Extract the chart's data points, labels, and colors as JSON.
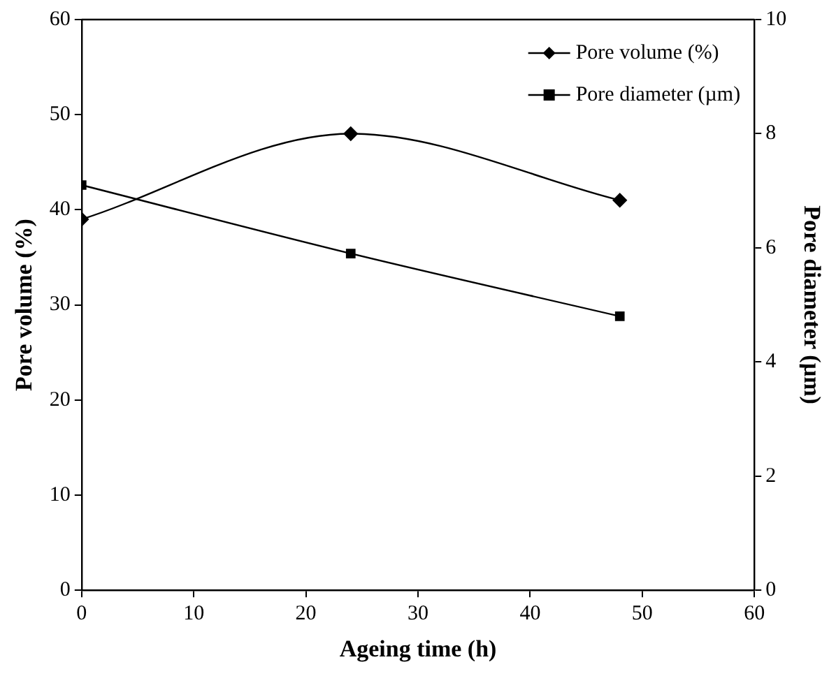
{
  "chart_data": {
    "type": "line",
    "xlabel": "Ageing time (h)",
    "ylabel": "Pore volume (%)",
    "y2label": "Pore diameter (µm)",
    "x": [
      0,
      24,
      48
    ],
    "series": [
      {
        "name": "Pore volume (%)",
        "color": "#000000",
        "values": [
          39,
          48,
          41
        ],
        "marker": "diamond"
      },
      {
        "name": "Pore diameter (µm)",
        "color": "#000000",
        "values": [
          7.1,
          5.9,
          4.8
        ],
        "marker": "square",
        "axis": "y2"
      }
    ],
    "xlim": [
      0,
      60
    ],
    "xticks": [
      0,
      10,
      20,
      30,
      40,
      50,
      60
    ],
    "ylim": [
      0,
      60
    ],
    "yticks": [
      0,
      10,
      20,
      30,
      40,
      50,
      60
    ],
    "y2lim": [
      0,
      10
    ],
    "y2ticks": [
      0,
      2,
      4,
      6,
      8,
      10
    ],
    "grid": false,
    "legend": "top right"
  }
}
